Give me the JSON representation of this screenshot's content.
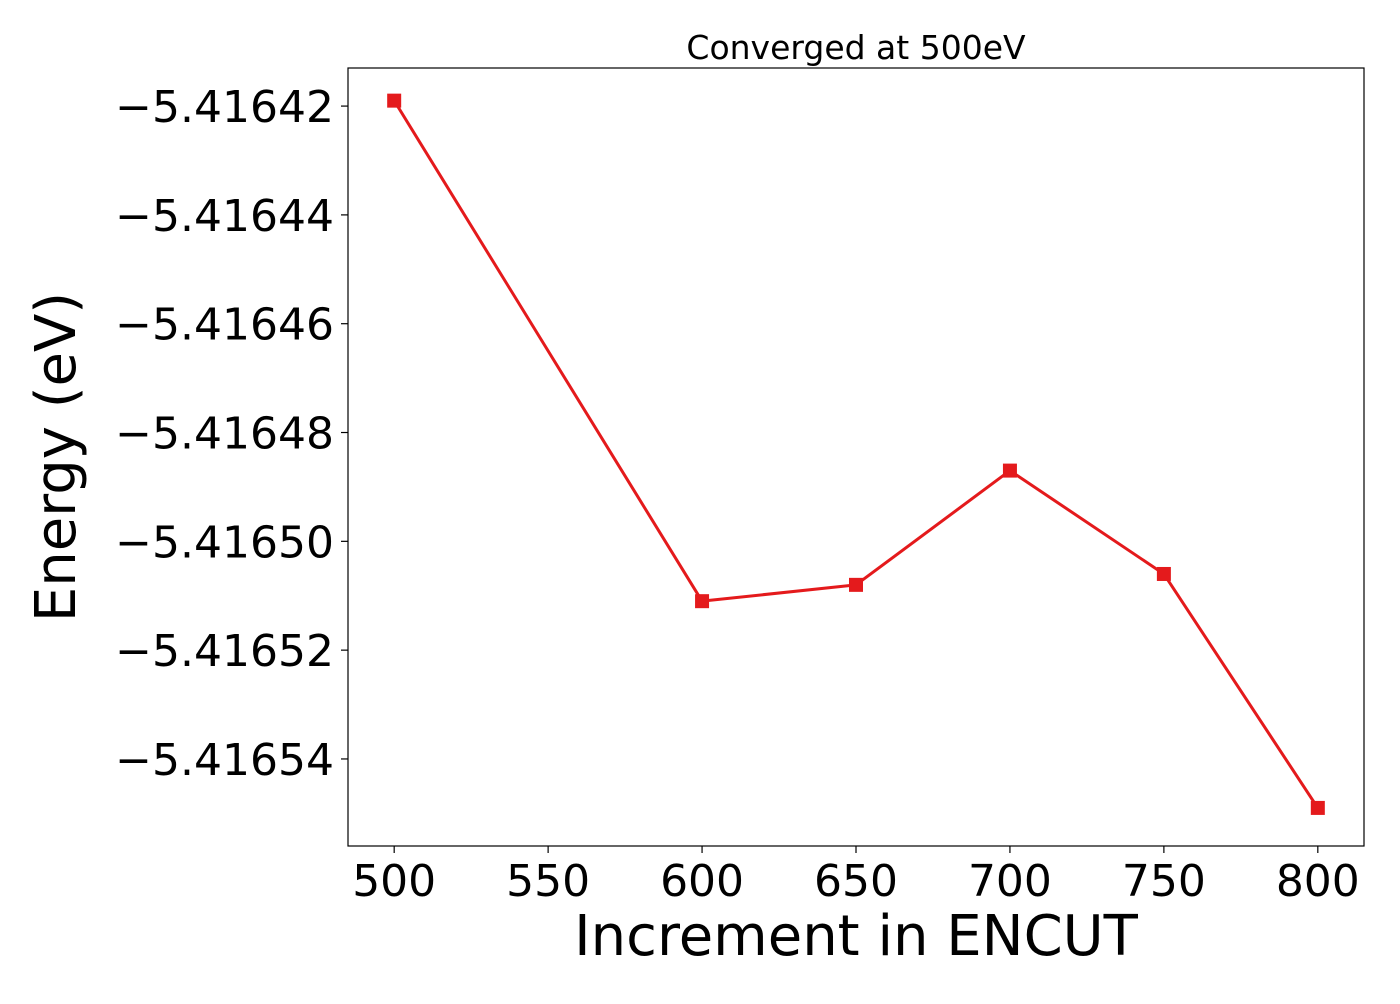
{
  "chart_data": {
    "type": "line",
    "title": "Converged at 500eV",
    "xlabel": "Increment in ENCUT",
    "ylabel": "Energy (eV)",
    "x": [
      500,
      600,
      650,
      700,
      750,
      800
    ],
    "series": [
      {
        "values": [
          -5.416419,
          -5.416511,
          -5.416508,
          -5.416487,
          -5.416506,
          -5.416549
        ],
        "color": "#e41a1c",
        "marker": "square"
      }
    ],
    "xlim": [
      485,
      815
    ],
    "ylim": [
      -5.416556,
      -5.416413
    ],
    "xticks": [
      500,
      550,
      600,
      650,
      700,
      750,
      800
    ],
    "xtick_labels": [
      "500",
      "550",
      "600",
      "650",
      "700",
      "750",
      "800"
    ],
    "yticks": [
      -5.41642,
      -5.41644,
      -5.41646,
      -5.41648,
      -5.4165,
      -5.41652,
      -5.41654
    ],
    "ytick_labels": [
      "−5.41642",
      "−5.41644",
      "−5.41646",
      "−5.41648",
      "−5.41650",
      "−5.41652",
      "−5.41654"
    ],
    "grid": false,
    "legend": "none"
  }
}
